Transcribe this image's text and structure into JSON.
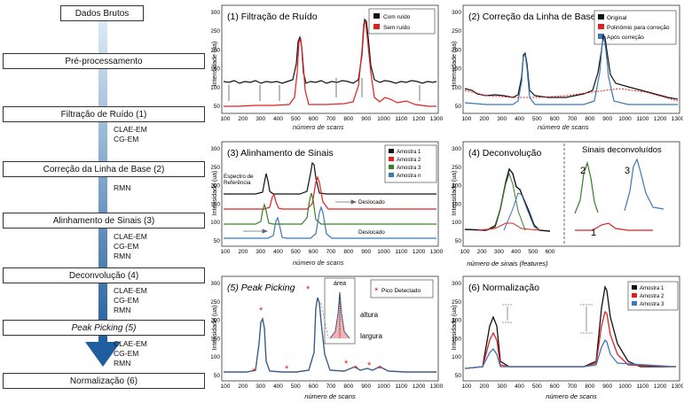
{
  "flow": {
    "raw": "Dados Brutos",
    "steps": [
      "Pré-processamento",
      "Filtração de Ruído (1)",
      "Correção da Linha de Base (2)",
      "Alinhamento de Sinais (3)",
      "Deconvolução (4)",
      "Peak Picking (5)",
      "Normalização (6)"
    ],
    "tech": [
      [
        "CLAE-EM",
        "CG-EM"
      ],
      [
        "RMN"
      ],
      [
        "CLAE-EM",
        "CG-EM",
        "RMN"
      ],
      [
        "CLAE-EM",
        "CG-EM",
        "RMN"
      ],
      [
        "CLAE-EM",
        "CG-EM",
        "RMN"
      ]
    ]
  },
  "common": {
    "ylabel": "Intensidade (ua)",
    "xlabel": "número de scans",
    "xticks": [
      100,
      200,
      300,
      400,
      500,
      600,
      700,
      800,
      900,
      1000,
      1100,
      1200,
      1300
    ],
    "yticks": [
      50,
      100,
      150,
      200,
      250,
      300
    ]
  },
  "panels": {
    "p1": {
      "title": "(1) Filtração de Ruído",
      "legend": [
        "Com ruído",
        "Sem ruído"
      ]
    },
    "p2": {
      "title": "(2) Correção da Linha de Base",
      "legend": [
        "Original",
        "Polinômio para correção",
        "Após correção"
      ]
    },
    "p3": {
      "title": "(3) Alinhamento de Sinais",
      "legend": [
        "Amostra 1",
        "Amostra 2",
        "Amostra 3",
        "Amostra n"
      ],
      "ref": "Espectro de Referência",
      "shift": "Deslocado"
    },
    "p4": {
      "title": "(4) Deconvolução",
      "subtitle": "Sinais deconvoluídos",
      "xlabel": "número de sinais (features)",
      "xticks": [
        100,
        200,
        300,
        400,
        500,
        600
      ],
      "nums": [
        "1",
        "2",
        "3"
      ]
    },
    "p5": {
      "title": "(5) Peak Picking",
      "legend": "Pico Detectado",
      "area": "área",
      "height": "altura",
      "width": "largura"
    },
    "p6": {
      "title": "(6) Normalização",
      "legend": [
        "Amostra 1",
        "Amostra 2",
        "Amostra 3"
      ]
    }
  },
  "colors": {
    "black": "#111111",
    "red": "#e02020",
    "green": "#3a7d2a",
    "blue": "#3b78b5",
    "arrow": "#1f5e9e"
  }
}
